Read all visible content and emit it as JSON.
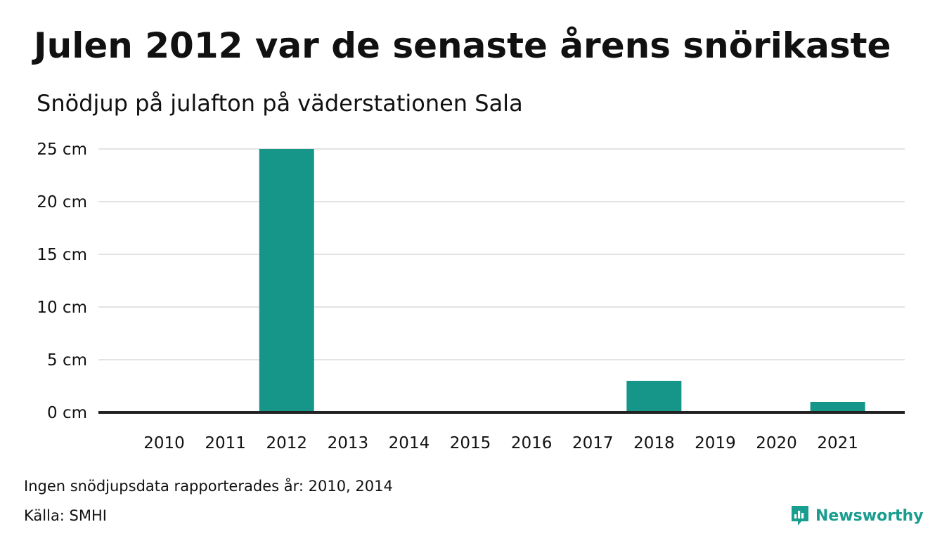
{
  "header": {
    "title": "Julen 2012 var de senaste årens snörikaste",
    "subtitle": "Snödjup på julafton på väderstationen Sala"
  },
  "footer": {
    "note": "Ingen snödjupsdata rapporterades år: 2010, 2014",
    "source": "Källa: SMHI",
    "brand": "Newsworthy"
  },
  "colors": {
    "bar": "#159688",
    "grid": "#e3e3e3",
    "axis": "#222222",
    "brand": "#199d8f"
  },
  "chart_data": {
    "type": "bar",
    "title": "Julen 2012 var de senaste årens snörikaste",
    "subtitle": "Snödjup på julafton på väderstationen Sala",
    "categories": [
      "2010",
      "2011",
      "2012",
      "2013",
      "2014",
      "2015",
      "2016",
      "2017",
      "2018",
      "2019",
      "2020",
      "2021"
    ],
    "values": [
      null,
      0,
      25,
      0,
      null,
      0,
      0,
      0,
      3,
      0,
      0,
      1
    ],
    "unit": "cm",
    "ylim": [
      0,
      25
    ],
    "yticks": [
      0,
      5,
      10,
      15,
      20,
      25
    ],
    "ytick_labels": [
      "0 cm",
      "5 cm",
      "10 cm",
      "15 cm",
      "20 cm",
      "25 cm"
    ],
    "grid": true,
    "legend": "none"
  }
}
